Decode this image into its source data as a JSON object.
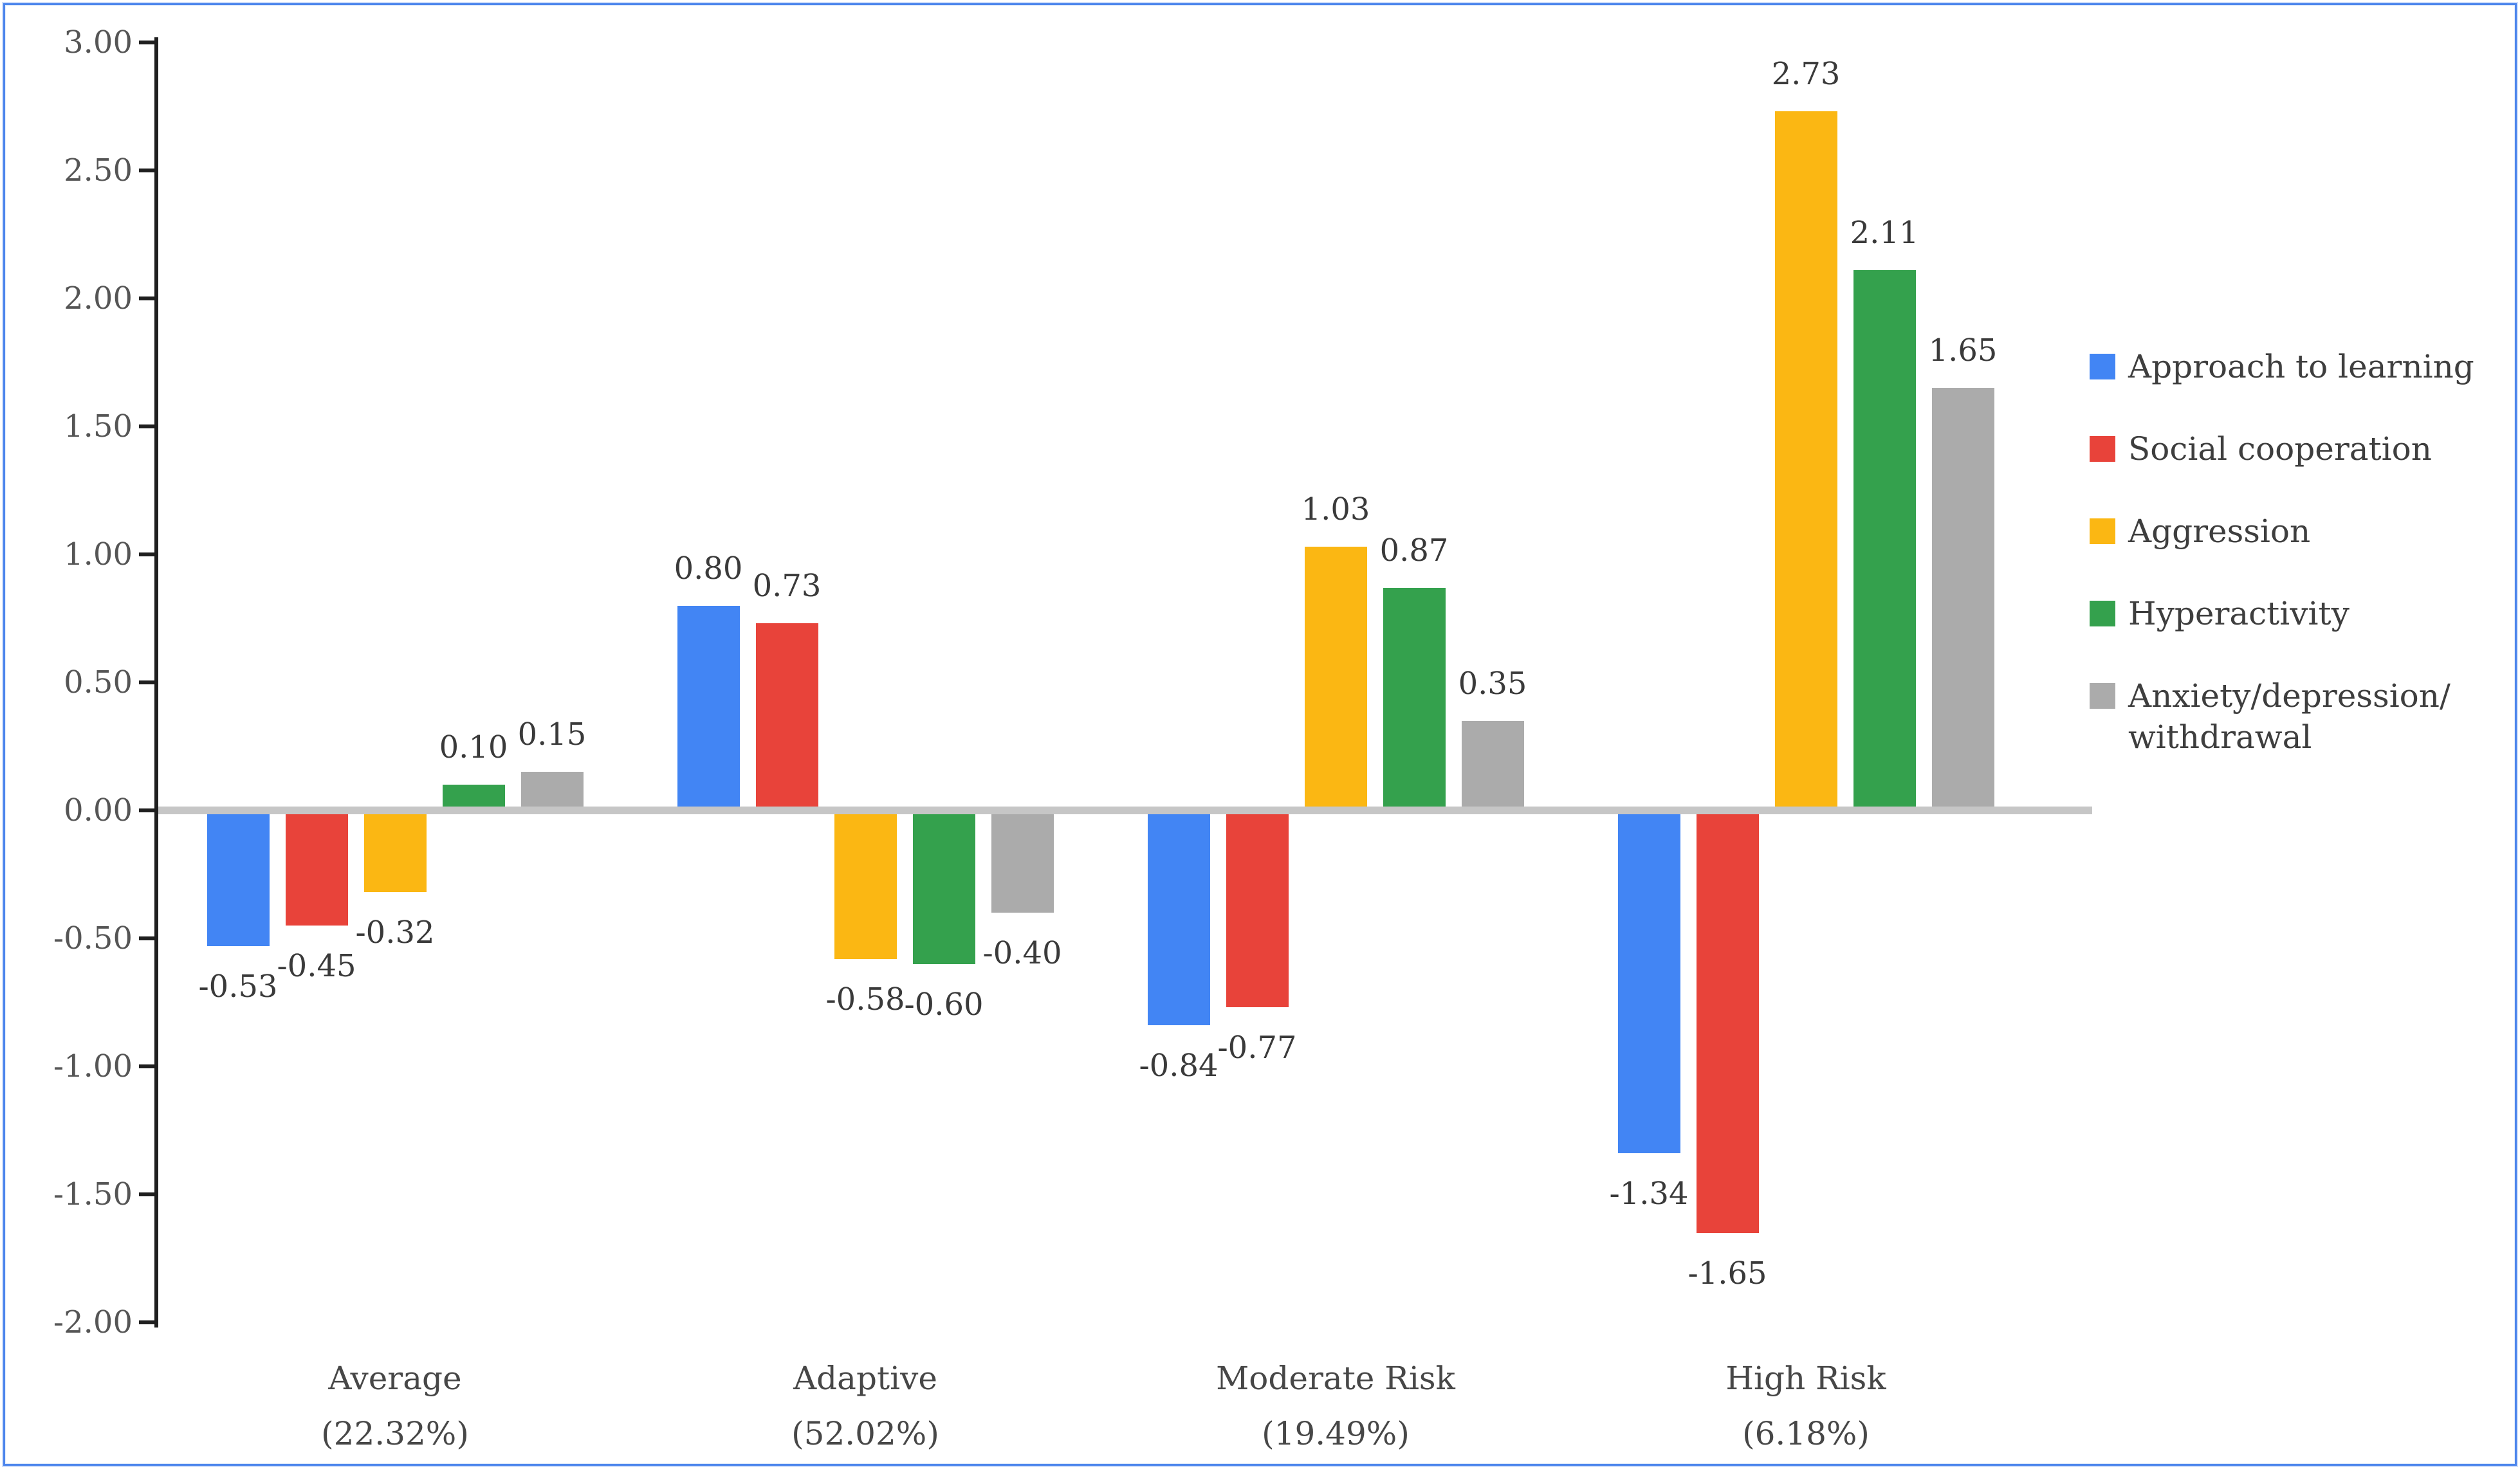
{
  "chart_data": {
    "type": "bar",
    "title": "",
    "categories": [
      {
        "label": "Average",
        "sublabel": "(22.32%)"
      },
      {
        "label": "Adaptive",
        "sublabel": "(52.02%)"
      },
      {
        "label": "Moderate Risk",
        "sublabel": "(19.49%)"
      },
      {
        "label": "High Risk",
        "sublabel": "(6.18%)"
      }
    ],
    "series": [
      {
        "name": "Approach to learning",
        "color": "#4285F4",
        "values": [
          -0.53,
          0.8,
          -0.84,
          -1.34
        ]
      },
      {
        "name": "Social cooperation",
        "color": "#E8433A",
        "values": [
          -0.45,
          0.73,
          -0.77,
          -1.65
        ]
      },
      {
        "name": "Aggression",
        "color": "#FBB713",
        "values": [
          -0.32,
          -0.58,
          1.03,
          2.73
        ]
      },
      {
        "name": "Hyperactivity",
        "color": "#34A14D",
        "values": [
          0.1,
          -0.6,
          0.87,
          2.11
        ]
      },
      {
        "name": "Anxiety/depression/withdrawal",
        "color": "#ABABAB",
        "values": [
          0.15,
          -0.4,
          0.35,
          1.65
        ],
        "legend_lines": [
          "Anxiety/depression/",
          "withdrawal"
        ]
      }
    ],
    "value_labels_shown": true,
    "value_label_decimals": 2,
    "y_axis": {
      "min": -2.0,
      "max": 3.0,
      "step": 0.5,
      "tick_labels": [
        "3.00",
        "2.50",
        "2.00",
        "1.50",
        "1.00",
        "0.50",
        "0.00",
        "-0.50",
        "-1.00",
        "-1.50",
        "-2.00"
      ]
    },
    "legend_position": "right",
    "grid": "zero-line-only",
    "colors": {
      "axis": "#1F1F1F",
      "zero_line": "#C6C6C6",
      "tick_label": "#555555",
      "value_label": "#3A3A3A",
      "category_label": "#474747",
      "legend_label": "#3E3E3E",
      "frame_border": "#4C85EC",
      "frame_glow": "#CFDEFB",
      "background": "#FFFFFF"
    }
  }
}
